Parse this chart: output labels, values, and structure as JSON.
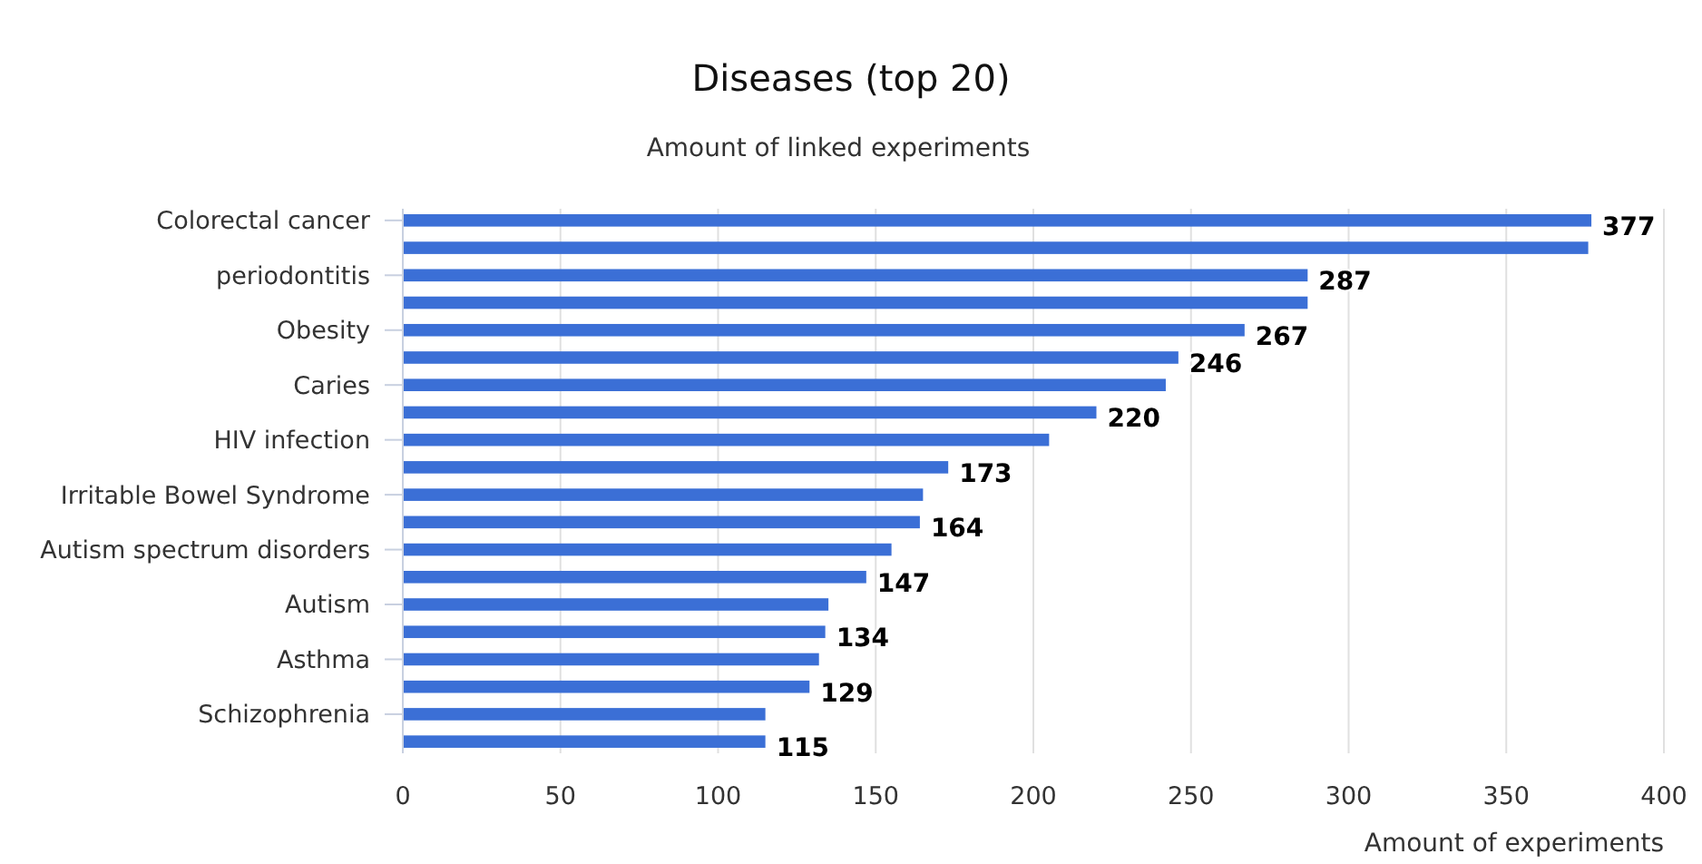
{
  "chart_data": {
    "type": "bar",
    "orientation": "horizontal",
    "title": "Diseases (top 20)",
    "subtitle": "Amount of linked experiments",
    "xlabel": "Amount of experiments",
    "categories": [
      "Colorectal cancer",
      null,
      "periodontitis",
      null,
      "Obesity",
      null,
      "Caries",
      null,
      "HIV infection",
      null,
      "Irritable Bowel Syndrome",
      null,
      "Autism spectrum disorders",
      null,
      "Autism",
      null,
      "Asthma",
      null,
      "Schizophrenia",
      null
    ],
    "values": [
      377,
      376,
      287,
      287,
      267,
      246,
      242,
      220,
      205,
      173,
      165,
      164,
      155,
      147,
      135,
      134,
      132,
      129,
      115,
      115
    ],
    "value_labels": [
      "377",
      null,
      "287",
      null,
      "267",
      "246",
      null,
      "220",
      null,
      "173",
      null,
      "164",
      null,
      "147",
      null,
      "134",
      null,
      "129",
      null,
      "115"
    ],
    "color": "#3b6fd6",
    "xlim": [
      0,
      400
    ],
    "xticks": [
      0,
      50,
      100,
      150,
      200,
      250,
      300,
      350,
      400
    ],
    "grid": "x"
  }
}
